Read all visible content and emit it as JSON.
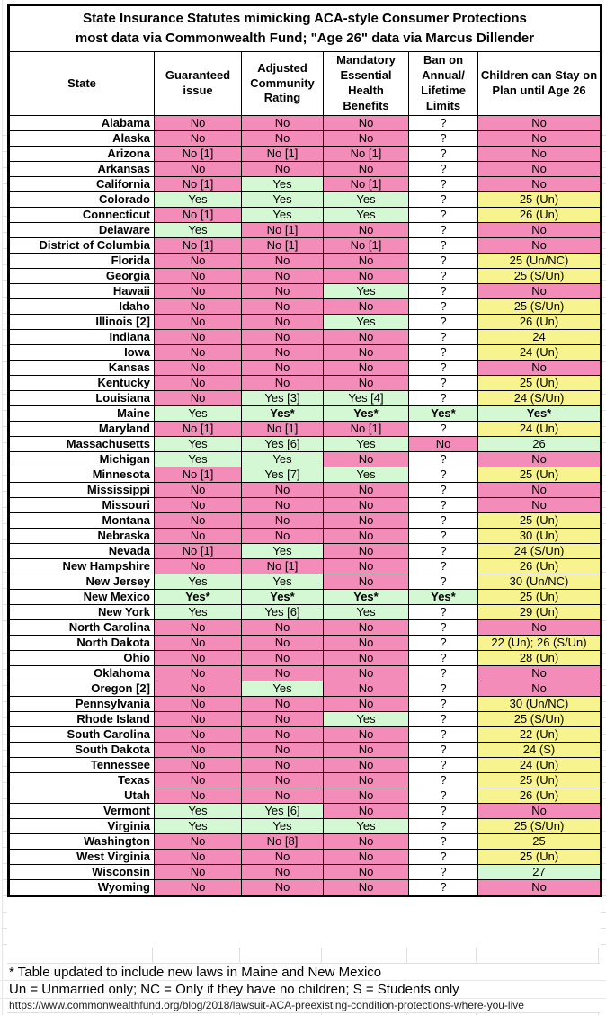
{
  "title": {
    "line1": "State Insurance Statutes mimicking ACA-style Consumer Protections",
    "line2": "most data via Commonwealth Fund; \"Age 26\" data via Marcus Dillender"
  },
  "table": {
    "columns": [
      "State",
      "Guaranteed issue",
      "Adjusted Community Rating",
      "Mandatory Essential Health Benefits",
      "Ban on Annual/ Lifetime Limits",
      "Children can Stay on Plan until Age 26"
    ],
    "rows": [
      {
        "state": "Alabama",
        "v": [
          "No",
          "No",
          "No",
          "?",
          "No"
        ],
        "c": "pppwp"
      },
      {
        "state": "Alaska",
        "v": [
          "No",
          "No",
          "No",
          "?",
          "No"
        ],
        "c": "pppwp"
      },
      {
        "state": "Arizona",
        "v": [
          "No [1]",
          "No [1]",
          "No [1]",
          "?",
          "No"
        ],
        "c": "pppwp"
      },
      {
        "state": "Arkansas",
        "v": [
          "No",
          "No",
          "No",
          "?",
          "No"
        ],
        "c": "pppwp"
      },
      {
        "state": "California",
        "v": [
          "No [1]",
          "Yes",
          "No [1]",
          "?",
          "No"
        ],
        "c": "pgpwp"
      },
      {
        "state": "Colorado",
        "v": [
          "Yes",
          "Yes",
          "Yes",
          "?",
          "25 (Un)"
        ],
        "c": "gggwy"
      },
      {
        "state": "Connecticut",
        "v": [
          "No [1]",
          "Yes",
          "Yes",
          "?",
          "26 (Un)"
        ],
        "c": "pggwy"
      },
      {
        "state": "Delaware",
        "v": [
          "Yes",
          "No [1]",
          "No",
          "?",
          "No"
        ],
        "c": "gppwp"
      },
      {
        "state": "District of Columbia",
        "v": [
          "No [1]",
          "No [1]",
          "No [1]",
          "?",
          "No"
        ],
        "c": "pppwp"
      },
      {
        "state": "Florida",
        "v": [
          "No",
          "No",
          "No",
          "?",
          "25 (Un/NC)"
        ],
        "c": "pppwy"
      },
      {
        "state": "Georgia",
        "v": [
          "No",
          "No",
          "No",
          "?",
          "25 (S/Un)"
        ],
        "c": "pppwy"
      },
      {
        "state": "Hawaii",
        "v": [
          "No",
          "No",
          "Yes",
          "?",
          "No"
        ],
        "c": "ppgwp"
      },
      {
        "state": "Idaho",
        "v": [
          "No",
          "No",
          "No",
          "?",
          "25 (S/Un)"
        ],
        "c": "pppwy"
      },
      {
        "state": "Illinois [2]",
        "v": [
          "No",
          "No",
          "Yes",
          "?",
          "26 (Un)"
        ],
        "c": "ppgwy"
      },
      {
        "state": "Indiana",
        "v": [
          "No",
          "No",
          "No",
          "?",
          "24"
        ],
        "c": "pppwy"
      },
      {
        "state": "Iowa",
        "v": [
          "No",
          "No",
          "No",
          "?",
          "24 (Un)"
        ],
        "c": "pppwy"
      },
      {
        "state": "Kansas",
        "v": [
          "No",
          "No",
          "No",
          "?",
          "No"
        ],
        "c": "pppwp"
      },
      {
        "state": "Kentucky",
        "v": [
          "No",
          "No",
          "No",
          "?",
          "25 (Un)"
        ],
        "c": "pppwy"
      },
      {
        "state": "Louisiana",
        "v": [
          "No",
          "Yes [3]",
          "Yes [4]",
          "?",
          "24 (S/Un)"
        ],
        "c": "pggwy"
      },
      {
        "state": "Maine",
        "v": [
          "Yes",
          "Yes*",
          "Yes*",
          "Yes*",
          "Yes*"
        ],
        "c": "ggggg",
        "bold": [
          1,
          2,
          3,
          4
        ]
      },
      {
        "state": "Maryland",
        "v": [
          "No [1]",
          "No [1]",
          "No [1]",
          "?",
          "24 (Un)"
        ],
        "c": "pppwy"
      },
      {
        "state": "Massachusetts",
        "v": [
          "Yes",
          "Yes [6]",
          "Yes",
          "No",
          "26"
        ],
        "c": "gggpg"
      },
      {
        "state": "Michigan",
        "v": [
          "Yes",
          "Yes",
          "No",
          "?",
          "No"
        ],
        "c": "ggpwp"
      },
      {
        "state": "Minnesota",
        "v": [
          "No [1]",
          "Yes [7]",
          "Yes",
          "?",
          "25 (Un)"
        ],
        "c": "pggwy"
      },
      {
        "state": "Mississippi",
        "v": [
          "No",
          "No",
          "No",
          "?",
          "No"
        ],
        "c": "pppwp"
      },
      {
        "state": "Missouri",
        "v": [
          "No",
          "No",
          "No",
          "?",
          "No"
        ],
        "c": "pppwp"
      },
      {
        "state": "Montana",
        "v": [
          "No",
          "No",
          "No",
          "?",
          "25 (Un)"
        ],
        "c": "pppwy"
      },
      {
        "state": "Nebraska",
        "v": [
          "No",
          "No",
          "No",
          "?",
          "30 (Un)"
        ],
        "c": "pppwy"
      },
      {
        "state": "Nevada",
        "v": [
          "No [1]",
          "Yes",
          "No",
          "?",
          "24 (S/Un)"
        ],
        "c": "pgpwy"
      },
      {
        "state": "New Hampshire",
        "v": [
          "No",
          "No [1]",
          "No",
          "?",
          "26 (Un)"
        ],
        "c": "pppwy"
      },
      {
        "state": "New Jersey",
        "v": [
          "Yes",
          "Yes",
          "No",
          "?",
          "30 (Un/NC)"
        ],
        "c": "ggpwy"
      },
      {
        "state": "New Mexico",
        "v": [
          "Yes*",
          "Yes*",
          "Yes*",
          "Yes*",
          "25 (Un)"
        ],
        "c": "ggggy",
        "bold": [
          0,
          1,
          2,
          3
        ]
      },
      {
        "state": "New York",
        "v": [
          "Yes",
          "Yes [6]",
          "Yes",
          "?",
          "29 (Un)"
        ],
        "c": "gggwy"
      },
      {
        "state": "North Carolina",
        "v": [
          "No",
          "No",
          "No",
          "?",
          "No"
        ],
        "c": "pppwp"
      },
      {
        "state": "North Dakota",
        "v": [
          "No",
          "No",
          "No",
          "?",
          "22 (Un); 26 (S/Un)"
        ],
        "c": "pppwy"
      },
      {
        "state": "Ohio",
        "v": [
          "No",
          "No",
          "No",
          "?",
          "28 (Un)"
        ],
        "c": "pppwy"
      },
      {
        "state": "Oklahoma",
        "v": [
          "No",
          "No",
          "No",
          "?",
          "No"
        ],
        "c": "pppwp"
      },
      {
        "state": "Oregon [2]",
        "v": [
          "No",
          "Yes",
          "No",
          "?",
          "No"
        ],
        "c": "pgpwp"
      },
      {
        "state": "Pennsylvania",
        "v": [
          "No",
          "No",
          "No",
          "?",
          "30 (Un/NC)"
        ],
        "c": "pppwy"
      },
      {
        "state": "Rhode Island",
        "v": [
          "No",
          "No",
          "Yes",
          "?",
          "25 (S/Un)"
        ],
        "c": "ppgwy"
      },
      {
        "state": "South Carolina",
        "v": [
          "No",
          "No",
          "No",
          "?",
          "22 (Un)"
        ],
        "c": "pppwy"
      },
      {
        "state": "South Dakota",
        "v": [
          "No",
          "No",
          "No",
          "?",
          "24 (S)"
        ],
        "c": "pppwy"
      },
      {
        "state": "Tennessee",
        "v": [
          "No",
          "No",
          "No",
          "?",
          "24 (Un)"
        ],
        "c": "pppwy"
      },
      {
        "state": "Texas",
        "v": [
          "No",
          "No",
          "No",
          "?",
          "25 (Un)"
        ],
        "c": "pppwy"
      },
      {
        "state": "Utah",
        "v": [
          "No",
          "No",
          "No",
          "?",
          "26 (Un)"
        ],
        "c": "pppwy"
      },
      {
        "state": "Vermont",
        "v": [
          "Yes",
          "Yes [6]",
          "No",
          "?",
          "No"
        ],
        "c": "ggpwp"
      },
      {
        "state": "Virginia",
        "v": [
          "Yes",
          "Yes",
          "Yes",
          "?",
          "25 (S/Un)"
        ],
        "c": "gggwy"
      },
      {
        "state": "Washington",
        "v": [
          "No",
          "No [8]",
          "No",
          "?",
          "25"
        ],
        "c": "pppwy"
      },
      {
        "state": "West Virginia",
        "v": [
          "No",
          "No",
          "No",
          "?",
          "25 (Un)"
        ],
        "c": "pppwy"
      },
      {
        "state": "Wisconsin",
        "v": [
          "No",
          "No",
          "No",
          "?",
          "27"
        ],
        "c": "pppwg"
      },
      {
        "state": "Wyoming",
        "v": [
          "No",
          "No",
          "No",
          "?",
          "No"
        ],
        "c": "pppwp"
      }
    ]
  },
  "footnotes": {
    "updated": "* Table updated to include new laws in Maine and New Mexico",
    "legend": "Un = Unmarried only; NC = Only if they have no children; S = Students only",
    "source_url": "https://www.commonwealthfund.org/blog/2018/lawsuit-ACA-preexisting-condition-protections-where-you-live"
  },
  "colors": {
    "pink": "#F48CBA",
    "green": "#D4F7D4",
    "yellow": "#F7F48F",
    "white": "#FFFFFF",
    "grid": "#E2E2E2",
    "border": "#000000"
  },
  "chart_data": {
    "type": "table",
    "title": "State Insurance Statutes mimicking ACA-style Consumer Protections",
    "subtitle": "most data via Commonwealth Fund; \"Age 26\" data via Marcus Dillender",
    "columns": [
      "State",
      "Guaranteed issue",
      "Adjusted Community Rating",
      "Mandatory Essential Health Benefits",
      "Ban on Annual/Lifetime Limits",
      "Children can Stay on Plan until Age 26"
    ],
    "cell_color_legend": {
      "p": "pink = No/statute absent",
      "g": "green = Yes/statute present",
      "y": "yellow = age extension with conditions",
      "w": "white = unknown (?)"
    },
    "rows": [
      [
        "Alabama",
        "No",
        "No",
        "No",
        "?",
        "No"
      ],
      [
        "Alaska",
        "No",
        "No",
        "No",
        "?",
        "No"
      ],
      [
        "Arizona",
        "No [1]",
        "No [1]",
        "No [1]",
        "?",
        "No"
      ],
      [
        "Arkansas",
        "No",
        "No",
        "No",
        "?",
        "No"
      ],
      [
        "California",
        "No [1]",
        "Yes",
        "No [1]",
        "?",
        "No"
      ],
      [
        "Colorado",
        "Yes",
        "Yes",
        "Yes",
        "?",
        "25 (Un)"
      ],
      [
        "Connecticut",
        "No [1]",
        "Yes",
        "Yes",
        "?",
        "26 (Un)"
      ],
      [
        "Delaware",
        "Yes",
        "No [1]",
        "No",
        "?",
        "No"
      ],
      [
        "District of Columbia",
        "No [1]",
        "No [1]",
        "No [1]",
        "?",
        "No"
      ],
      [
        "Florida",
        "No",
        "No",
        "No",
        "?",
        "25 (Un/NC)"
      ],
      [
        "Georgia",
        "No",
        "No",
        "No",
        "?",
        "25 (S/Un)"
      ],
      [
        "Hawaii",
        "No",
        "No",
        "Yes",
        "?",
        "No"
      ],
      [
        "Idaho",
        "No",
        "No",
        "No",
        "?",
        "25 (S/Un)"
      ],
      [
        "Illinois [2]",
        "No",
        "No",
        "Yes",
        "?",
        "26 (Un)"
      ],
      [
        "Indiana",
        "No",
        "No",
        "No",
        "?",
        "24"
      ],
      [
        "Iowa",
        "No",
        "No",
        "No",
        "?",
        "24 (Un)"
      ],
      [
        "Kansas",
        "No",
        "No",
        "No",
        "?",
        "No"
      ],
      [
        "Kentucky",
        "No",
        "No",
        "No",
        "?",
        "25 (Un)"
      ],
      [
        "Louisiana",
        "No",
        "Yes [3]",
        "Yes [4]",
        "?",
        "24 (S/Un)"
      ],
      [
        "Maine",
        "Yes",
        "Yes*",
        "Yes*",
        "Yes*",
        "Yes*"
      ],
      [
        "Maryland",
        "No [1]",
        "No [1]",
        "No [1]",
        "?",
        "24 (Un)"
      ],
      [
        "Massachusetts",
        "Yes",
        "Yes [6]",
        "Yes",
        "No",
        "26"
      ],
      [
        "Michigan",
        "Yes",
        "Yes",
        "No",
        "?",
        "No"
      ],
      [
        "Minnesota",
        "No [1]",
        "Yes [7]",
        "Yes",
        "?",
        "25 (Un)"
      ],
      [
        "Mississippi",
        "No",
        "No",
        "No",
        "?",
        "No"
      ],
      [
        "Missouri",
        "No",
        "No",
        "No",
        "?",
        "No"
      ],
      [
        "Montana",
        "No",
        "No",
        "No",
        "?",
        "25 (Un)"
      ],
      [
        "Nebraska",
        "No",
        "No",
        "No",
        "?",
        "30 (Un)"
      ],
      [
        "Nevada",
        "No [1]",
        "Yes",
        "No",
        "?",
        "24 (S/Un)"
      ],
      [
        "New Hampshire",
        "No",
        "No [1]",
        "No",
        "?",
        "26 (Un)"
      ],
      [
        "New Jersey",
        "Yes",
        "Yes",
        "No",
        "?",
        "30 (Un/NC)"
      ],
      [
        "New Mexico",
        "Yes*",
        "Yes*",
        "Yes*",
        "Yes*",
        "25 (Un)"
      ],
      [
        "New York",
        "Yes",
        "Yes [6]",
        "Yes",
        "?",
        "29 (Un)"
      ],
      [
        "North Carolina",
        "No",
        "No",
        "No",
        "?",
        "No"
      ],
      [
        "North Dakota",
        "No",
        "No",
        "No",
        "?",
        "22 (Un); 26 (S/Un)"
      ],
      [
        "Ohio",
        "No",
        "No",
        "No",
        "?",
        "28 (Un)"
      ],
      [
        "Oklahoma",
        "No",
        "No",
        "No",
        "?",
        "No"
      ],
      [
        "Oregon [2]",
        "No",
        "Yes",
        "No",
        "?",
        "No"
      ],
      [
        "Pennsylvania",
        "No",
        "No",
        "No",
        "?",
        "30 (Un/NC)"
      ],
      [
        "Rhode Island",
        "No",
        "No",
        "Yes",
        "?",
        "25 (S/Un)"
      ],
      [
        "South Carolina",
        "No",
        "No",
        "No",
        "?",
        "22 (Un)"
      ],
      [
        "South Dakota",
        "No",
        "No",
        "No",
        "?",
        "24 (S)"
      ],
      [
        "Tennessee",
        "No",
        "No",
        "No",
        "?",
        "24 (Un)"
      ],
      [
        "Texas",
        "No",
        "No",
        "No",
        "?",
        "25 (Un)"
      ],
      [
        "Utah",
        "No",
        "No",
        "No",
        "?",
        "26 (Un)"
      ],
      [
        "Vermont",
        "Yes",
        "Yes [6]",
        "No",
        "?",
        "No"
      ],
      [
        "Virginia",
        "Yes",
        "Yes",
        "Yes",
        "?",
        "25 (S/Un)"
      ],
      [
        "Washington",
        "No",
        "No [8]",
        "No",
        "?",
        "25"
      ],
      [
        "West Virginia",
        "No",
        "No",
        "No",
        "?",
        "25 (Un)"
      ],
      [
        "Wisconsin",
        "No",
        "No",
        "No",
        "?",
        "27"
      ],
      [
        "Wyoming",
        "No",
        "No",
        "No",
        "?",
        "No"
      ]
    ]
  }
}
